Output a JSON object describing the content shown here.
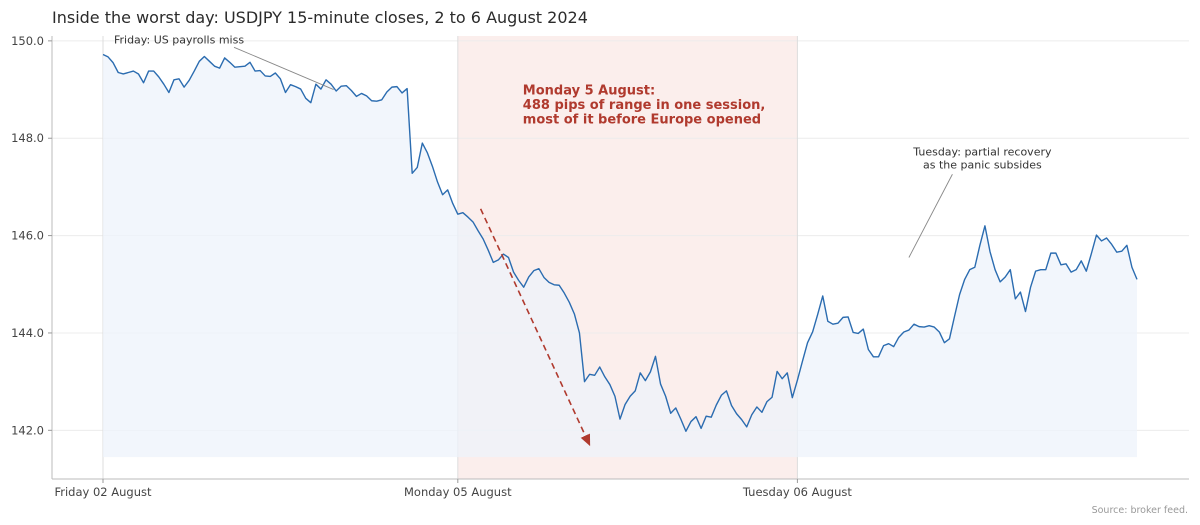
{
  "chart_data": {
    "type": "line",
    "title": "Inside the worst day: USDJPY 15-minute closes, 2 to 6 August 2024",
    "series_name": "USDJPY",
    "ylim": [
      141.0,
      150.1
    ],
    "yticks": [
      150.0,
      148.0,
      146.0,
      144.0,
      142.0
    ],
    "ytick_labels": [
      "150.0",
      "148.0",
      "146.0",
      "144.0",
      "142.0"
    ],
    "xlim_bars": [
      -10,
      207
    ],
    "xticks": [
      {
        "bar": 0,
        "label": "Friday 02 August"
      },
      {
        "bar": 70,
        "label": "Monday 05 August"
      },
      {
        "bar": 137,
        "label": "Tuesday 06 August"
      }
    ],
    "grid": "horizontal",
    "highlight": {
      "from_bar": 70,
      "to_bar": 137,
      "color": "#fbeeec"
    },
    "area_fill_base": 141.45,
    "colors": {
      "line": "#2b6cb0",
      "fill": "#edf3fb",
      "highlight": "#fbeeec",
      "accent": "#b03a2e"
    },
    "trend_arrow": {
      "from_bar": 74.5,
      "from_y": 146.55,
      "to_bar": 96,
      "to_y": 141.7
    },
    "annotations": [
      {
        "id": "friday",
        "lines": [
          "Friday: US payrolls miss"
        ],
        "text_bar": 15,
        "text_y": 149.95,
        "point_bar": 45.5,
        "point_y": 149.0,
        "bold": false,
        "color": "#333333"
      },
      {
        "id": "monday",
        "lines": [
          "Monday 5 August:",
          "488 pips of range in one session,",
          "most of it before Europe opened"
        ],
        "text_bar": 106.5,
        "text_y": 148.9,
        "bold": true,
        "color": "#b03a2e"
      },
      {
        "id": "tuesday",
        "lines": [
          "Tuesday: partial recovery",
          "as the panic subsides"
        ],
        "text_bar": 173.5,
        "text_y": 147.65,
        "point_bar": 159,
        "point_y": 145.55,
        "bold": false,
        "color": "#333333"
      }
    ],
    "values": [
      149.72,
      149.67,
      149.55,
      149.35,
      149.32,
      149.35,
      149.38,
      149.32,
      149.14,
      149.38,
      149.38,
      149.26,
      149.11,
      148.94,
      149.2,
      149.22,
      149.05,
      149.19,
      149.38,
      149.58,
      149.68,
      149.58,
      149.48,
      149.44,
      149.65,
      149.56,
      149.46,
      149.47,
      149.48,
      149.56,
      149.38,
      149.39,
      149.28,
      149.27,
      149.34,
      149.22,
      148.94,
      149.1,
      149.06,
      149.01,
      148.82,
      148.73,
      149.11,
      149.01,
      149.2,
      149.11,
      148.97,
      149.07,
      149.08,
      148.98,
      148.86,
      148.92,
      148.87,
      148.77,
      148.76,
      148.79,
      148.95,
      149.05,
      149.06,
      148.93,
      149.02,
      147.28,
      147.4,
      147.9,
      147.7,
      147.42,
      147.1,
      146.84,
      146.94,
      146.66,
      146.44,
      146.47,
      146.38,
      146.28,
      146.1,
      145.93,
      145.7,
      145.45,
      145.5,
      145.62,
      145.55,
      145.25,
      145.08,
      144.94,
      145.15,
      145.28,
      145.32,
      145.14,
      145.04,
      144.99,
      144.98,
      144.82,
      144.63,
      144.39,
      144.0,
      143.0,
      143.15,
      143.13,
      143.3,
      143.1,
      142.94,
      142.7,
      142.23,
      142.53,
      142.7,
      142.81,
      143.18,
      143.02,
      143.2,
      143.52,
      142.95,
      142.7,
      142.35,
      142.46,
      142.23,
      141.98,
      142.18,
      142.28,
      142.04,
      142.29,
      142.27,
      142.52,
      142.72,
      142.81,
      142.51,
      142.34,
      142.22,
      142.07,
      142.32,
      142.48,
      142.37,
      142.59,
      142.68,
      143.21,
      143.06,
      143.18,
      142.67,
      143.03,
      143.42,
      143.8,
      144.02,
      144.38,
      144.76,
      144.24,
      144.18,
      144.2,
      144.32,
      144.33,
      144.01,
      143.99,
      144.08,
      143.66,
      143.51,
      143.51,
      143.74,
      143.78,
      143.72,
      143.91,
      144.02,
      144.06,
      144.18,
      144.13,
      144.12,
      144.15,
      144.12,
      144.02,
      143.8,
      143.88,
      144.34,
      144.79,
      145.1,
      145.3,
      145.35,
      145.8,
      146.2,
      145.67,
      145.3,
      145.05,
      145.15,
      145.3,
      144.7,
      144.84,
      144.44,
      144.94,
      145.27,
      145.3,
      145.3,
      145.64,
      145.64,
      145.4,
      145.42,
      145.25,
      145.3,
      145.48,
      145.27,
      145.63,
      146.01,
      145.89,
      145.95,
      145.82,
      145.66,
      145.68,
      145.8,
      145.35,
      145.1
    ]
  },
  "source": "Source: broker feed."
}
